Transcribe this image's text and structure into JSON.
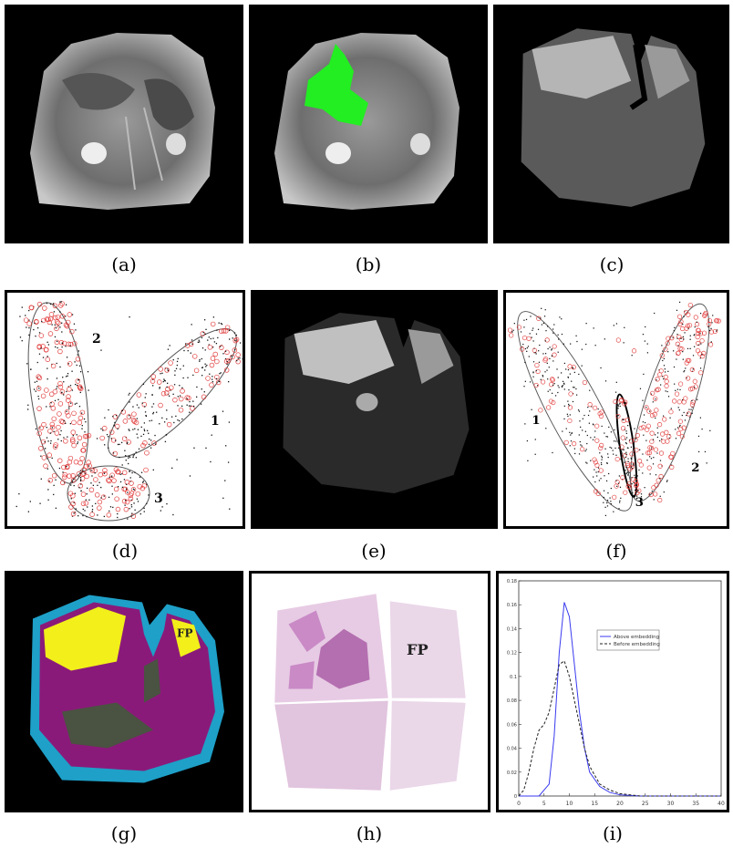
{
  "captions": [
    "(a)",
    "(b)",
    "(c)",
    "(d)",
    "(e)",
    "(f)",
    "(g)",
    "(h)",
    "(i)"
  ],
  "panel_d": {
    "labels": [
      "2",
      "1",
      "3"
    ]
  },
  "panel_f": {
    "labels": [
      "1",
      "2",
      "3"
    ]
  },
  "panel_g": {
    "annotation": "FP"
  },
  "panel_h": {
    "annotation": "FP"
  },
  "colors": {
    "mri_gray": "#8c8c8c",
    "segmentation": "#22ee22",
    "red_points": "#e23b3b",
    "black_points": "#111111",
    "heatmap_yellow": "#f2ef1a",
    "heatmap_magenta": "#8a1a7a",
    "heatmap_green": "#2f6b2a",
    "heatmap_bg": "#1ea0c8",
    "histology_pink": "#c98ac6",
    "line_solid": "#3a3af0",
    "line_dashed": "#222222"
  },
  "chart_data": {
    "type": "line",
    "legend": [
      "Above embedding",
      "Before embedding"
    ],
    "legend_position": "top-right",
    "xlim": [
      0,
      40
    ],
    "ylim": [
      0,
      0.18
    ],
    "x_ticks": [
      "0",
      "5",
      "10",
      "15",
      "20",
      "25",
      "30",
      "35",
      "40"
    ],
    "y_ticks": [
      "0",
      "0.02",
      "0.04",
      "0.06",
      "0.08",
      "0.1",
      "0.12",
      "0.14",
      "0.16",
      "0.18"
    ],
    "series": [
      {
        "name": "Above embedding",
        "style": "solid",
        "x": [
          0,
          4,
          6,
          7,
          8,
          9,
          10,
          11,
          12,
          13,
          14,
          16,
          18,
          20,
          24,
          30,
          40
        ],
        "y": [
          0,
          0,
          0.01,
          0.05,
          0.12,
          0.162,
          0.15,
          0.11,
          0.07,
          0.04,
          0.02,
          0.008,
          0.003,
          0.001,
          0,
          0,
          0
        ]
      },
      {
        "name": "Before embedding",
        "style": "dashed",
        "x": [
          0,
          1,
          2,
          3,
          4,
          5,
          6,
          7,
          8,
          9,
          10,
          11,
          12,
          13,
          14,
          16,
          18,
          20,
          24,
          30,
          40
        ],
        "y": [
          0,
          0.005,
          0.02,
          0.04,
          0.055,
          0.06,
          0.07,
          0.09,
          0.11,
          0.113,
          0.1,
          0.08,
          0.06,
          0.04,
          0.025,
          0.01,
          0.005,
          0.002,
          0,
          0,
          0
        ]
      }
    ]
  }
}
